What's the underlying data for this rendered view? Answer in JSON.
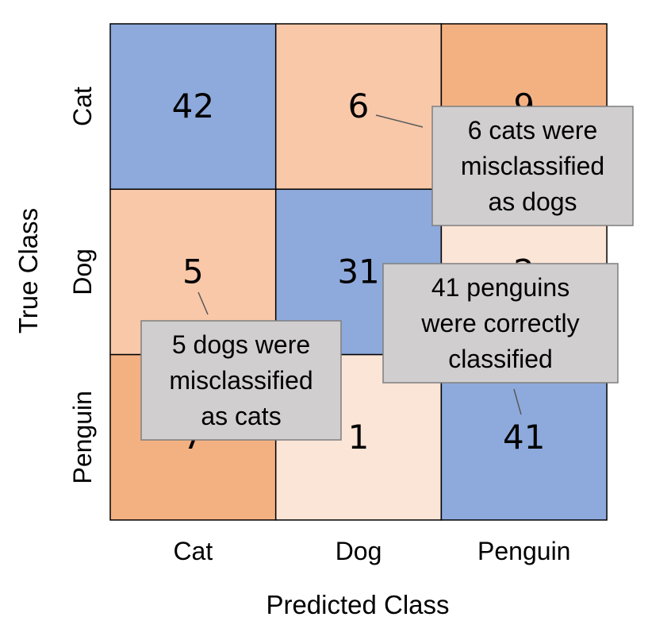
{
  "chart_data": {
    "type": "heatmap",
    "title": "",
    "xlabel": "Predicted Class",
    "ylabel": "True Class",
    "x_categories": [
      "Cat",
      "Dog",
      "Penguin"
    ],
    "y_categories": [
      "Cat",
      "Dog",
      "Penguin"
    ],
    "values": [
      [
        42,
        6,
        9
      ],
      [
        5,
        31,
        2
      ],
      [
        7,
        1,
        41
      ]
    ],
    "colors": {
      "diagonal": "#8eaadc",
      "high_off": "#f3b182",
      "mid_off": "#f8c8a9",
      "low_off": "#fbe5d7",
      "annotation_bg": "#d0cece",
      "annotation_border": "#7f7f7f"
    },
    "annotations": [
      {
        "text_lines": [
          "6 cats were",
          "misclassified",
          "as dogs"
        ],
        "row": 0,
        "col": 1
      },
      {
        "text_lines": [
          "5 dogs were",
          "misclassified",
          "as cats"
        ],
        "row": 1,
        "col": 0
      },
      {
        "text_lines": [
          "41 penguins",
          "were correctly",
          "classified"
        ],
        "row": 2,
        "col": 2
      }
    ]
  }
}
